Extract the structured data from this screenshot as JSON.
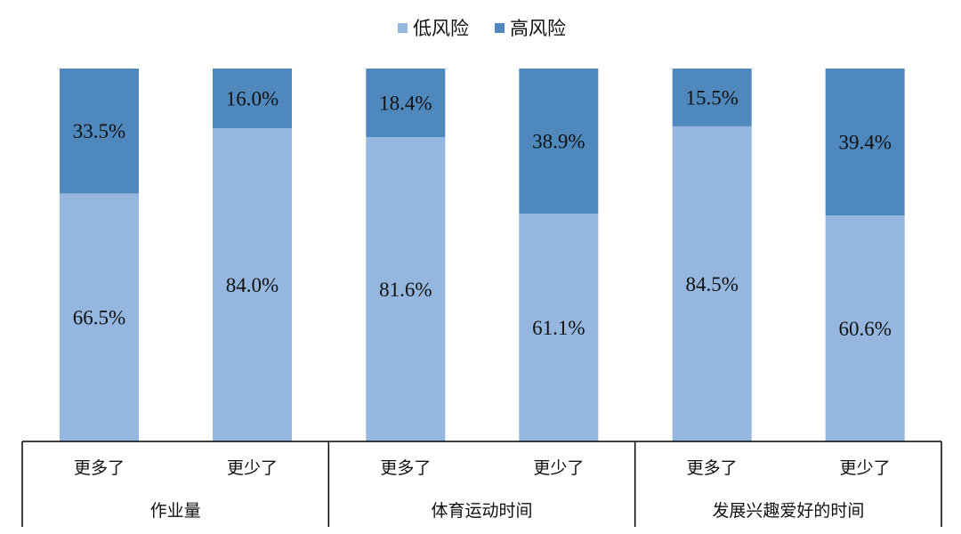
{
  "chart_data": {
    "type": "bar",
    "stacked": true,
    "normalized": true,
    "ylim": [
      0,
      100
    ],
    "value_suffix": "%",
    "legend_position": "top-center",
    "grid": false,
    "colors": {
      "低风险": "#95b7df",
      "高风险": "#4e88bd"
    },
    "groups": [
      {
        "label": "作业量",
        "categories": [
          "更多了",
          "更少了"
        ]
      },
      {
        "label": "体育运动时间",
        "categories": [
          "更多了",
          "更少了"
        ]
      },
      {
        "label": "发展兴趣爱好的时间",
        "categories": [
          "更多了",
          "更少了"
        ]
      }
    ],
    "series": [
      {
        "name": "低风险",
        "values": [
          66.5,
          84.0,
          81.6,
          61.1,
          84.5,
          60.6
        ]
      },
      {
        "name": "高风险",
        "values": [
          33.5,
          16.0,
          18.4,
          38.9,
          15.5,
          39.4
        ]
      }
    ]
  }
}
